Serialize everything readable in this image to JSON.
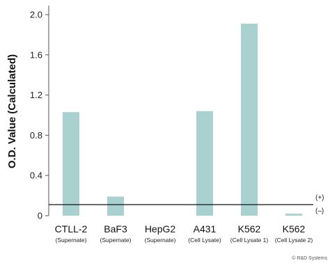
{
  "chart_data": {
    "type": "bar",
    "categories": [
      "CTLL-2",
      "BaF3",
      "HepG2",
      "A431",
      "K562",
      "K562"
    ],
    "subcategories": [
      "(Supernate)",
      "(Supernate)",
      "(Supernate)",
      "(Cell Lysate)",
      "(Cell Lysate 1)",
      "(Cell Lysate 2)"
    ],
    "values": [
      1.03,
      0.19,
      0.0,
      1.04,
      1.91,
      0.02
    ],
    "title": "",
    "xlabel": "",
    "ylabel": "O.D. Value (Calculated)",
    "ylim": [
      0,
      2.0
    ],
    "yticks": [
      "0",
      "0.4",
      "0.8",
      "1.2",
      "1.6",
      "2.0"
    ],
    "ytick_values": [
      0,
      0.4,
      0.8,
      1.2,
      1.6,
      2.0
    ],
    "cutoff": {
      "value": 0.11,
      "label_positive": "(+)",
      "label_negative": "(–)"
    },
    "grid": false,
    "bar_color": "#a8d1cf",
    "credit": "© R&D Systems"
  }
}
